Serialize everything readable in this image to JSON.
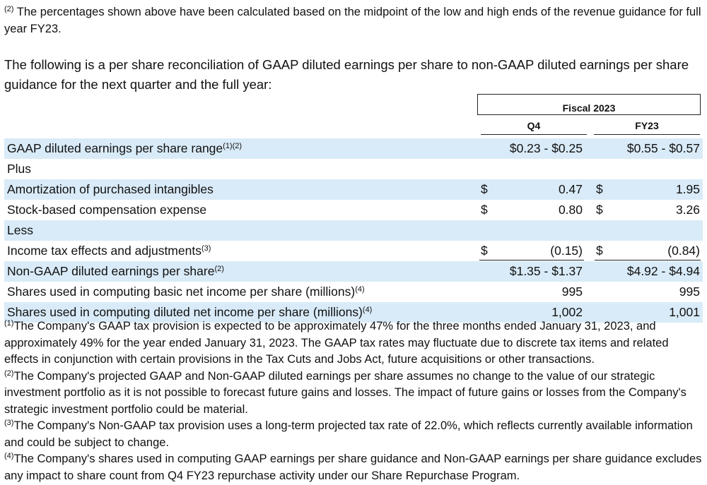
{
  "footnote_top": {
    "marker": "(2)",
    "text": "The percentages shown above have been calculated based on the midpoint of the low and high ends of the revenue guidance for full year FY23."
  },
  "intro": "The following is a per share reconciliation of GAAP diluted earnings per share to non-GAAP diluted earnings per share guidance for the next quarter and the full year:",
  "table": {
    "group_header": "Fiscal 2023",
    "columns": [
      "Q4",
      "FY23"
    ],
    "rows": [
      {
        "label": "GAAP diluted earnings per share range",
        "sup": "(1)(2)",
        "q4": "$0.23 - $0.25",
        "fy23": "$0.55 - $0.57"
      },
      {
        "label": "Plus"
      },
      {
        "label": "Amortization of purchased intangibles",
        "q4_currency": "$",
        "q4": "0.47",
        "fy23_currency": "$",
        "fy23": "1.95"
      },
      {
        "label": "Stock-based compensation expense",
        "q4_currency": "$",
        "q4": "0.80",
        "fy23_currency": "$",
        "fy23": "3.26"
      },
      {
        "label": "Less"
      },
      {
        "label": "Income tax effects and adjustments",
        "sup": "(3)",
        "q4_currency": "$",
        "q4": "(0.15)",
        "fy23_currency": "$",
        "fy23": "(0.84)"
      },
      {
        "label": "Non-GAAP diluted earnings per share",
        "sup": "(2)",
        "q4": "$1.35 - $1.37",
        "fy23": "$4.92 - $4.94"
      },
      {
        "label": "Shares used in computing basic net income per share (millions)",
        "sup": "(4)",
        "q4": "995",
        "fy23": "995"
      },
      {
        "label": "Shares used in computing diluted net income per share (millions)",
        "sup": "(4)",
        "q4": "1,002",
        "fy23": "1,001"
      }
    ]
  },
  "footnotes": [
    {
      "marker": "(1)",
      "text": "The Company's GAAP tax provision is expected to be approximately 47% for the three months ended January 31, 2023, and approximately 49% for the year ended January 31, 2023. The GAAP tax rates may fluctuate due to discrete tax items and related effects in conjunction with certain provisions in the Tax Cuts and Jobs Act, future acquisitions or other transactions."
    },
    {
      "marker": "(2)",
      "text": "The Company's projected GAAP and Non-GAAP diluted earnings per share assumes no change to the value of our strategic investment portfolio as it is not possible to forecast future gains and losses. The impact of future gains or losses from the Company's strategic investment portfolio could be material."
    },
    {
      "marker": "(3)",
      "text": "The Company's Non-GAAP tax provision uses a long-term projected tax rate of 22.0%, which reflects currently available information and could be subject to change."
    },
    {
      "marker": "(4)",
      "text": "The Company's shares used in computing GAAP earnings per share guidance and Non-GAAP earnings per share guidance excludes any impact to share count from Q4 FY23 repurchase activity under our Share Repurchase Program."
    }
  ]
}
